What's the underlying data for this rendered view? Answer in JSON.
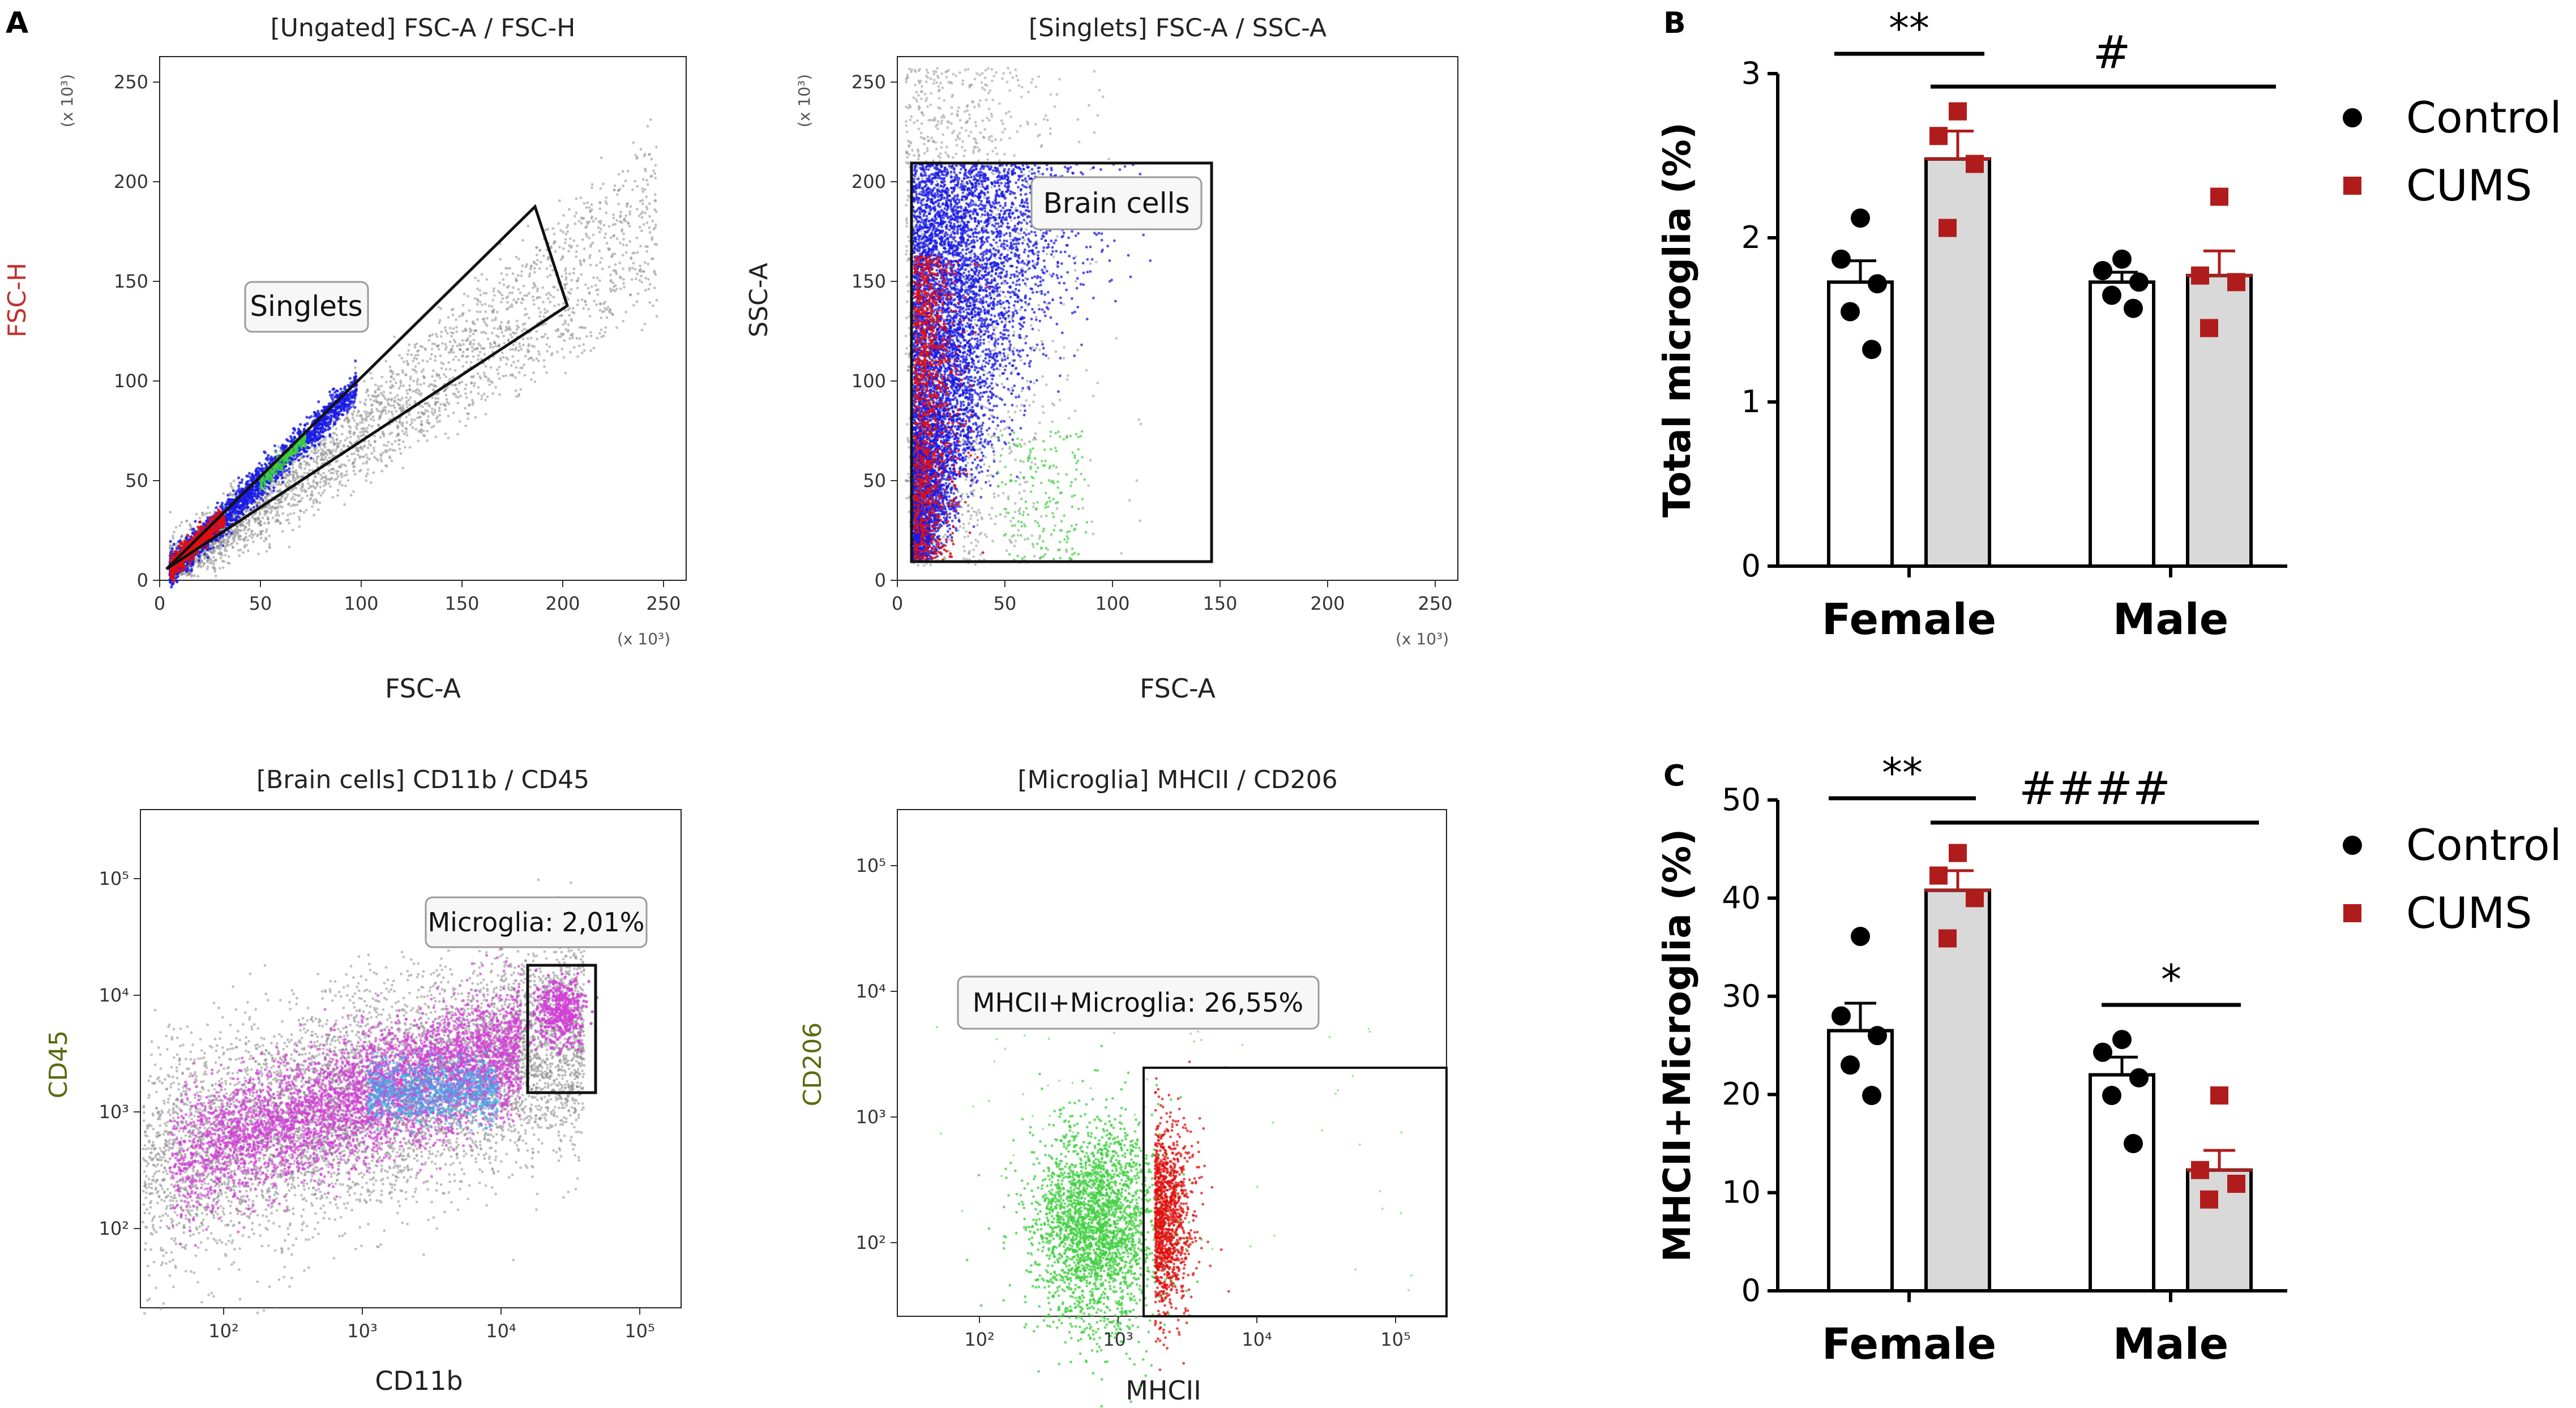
{
  "panel_labels": {
    "a": "A",
    "b": "B",
    "c": "C"
  },
  "colors": {
    "grey": "#8c8c8c",
    "blue": "#1a1ae6",
    "red": "#e01010",
    "green": "#3fcf3f",
    "magenta": "#d23fd6",
    "cyan": "#3fa9e6",
    "cums": "#b01c1c",
    "bar_fill": "#d9d9d9"
  },
  "flow_plots": [
    {
      "key": "p1",
      "title": "[Ungated] FSC-A / FSC-H",
      "xlabel": "FSC-A",
      "ylabel": "FSC-H",
      "scale": "linear",
      "xticks": [
        "0",
        "50",
        "100",
        "150",
        "200",
        "250"
      ],
      "yticks": [
        "0",
        "50",
        "100",
        "150",
        "200",
        "250"
      ],
      "x_multiplier": "(x 10³)",
      "y_multiplier": "(x 10³)",
      "gate_label": "Singlets"
    },
    {
      "key": "p2",
      "title": "[Singlets] FSC-A / SSC-A",
      "xlabel": "FSC-A",
      "ylabel": "SSC-A",
      "scale": "linear",
      "xticks": [
        "0",
        "50",
        "100",
        "150",
        "200",
        "250"
      ],
      "yticks": [
        "0",
        "50",
        "100",
        "150",
        "200",
        "250"
      ],
      "x_multiplier": "(x 10³)",
      "y_multiplier": "(x 10³)",
      "gate_label": "Brain cells"
    },
    {
      "key": "p3",
      "title": "[Brain cells] CD11b / CD45",
      "xlabel": "CD11b",
      "ylabel": "CD45",
      "scale": "log",
      "xticks": [
        "10²",
        "10³",
        "10⁴",
        "10⁵"
      ],
      "yticks": [
        "10²",
        "10³",
        "10⁴",
        "10⁵"
      ],
      "gate_label": "Microglia: 2,01%"
    },
    {
      "key": "p4",
      "title": "[Microglia] MHCII / CD206",
      "xlabel": "MHCII",
      "ylabel": "CD206",
      "scale": "log",
      "xticks": [
        "10²",
        "10³",
        "10⁴",
        "10⁵"
      ],
      "yticks": [
        "10²",
        "10³",
        "10⁴",
        "10⁵"
      ],
      "gate_label": "MHCII+Microglia: 26,55%"
    }
  ],
  "chart_data": [
    {
      "type": "bar",
      "key": "b",
      "title": "",
      "ylabel": "Total microglia (%)",
      "xlabel": "",
      "ylim": [
        0,
        3
      ],
      "yticks": [
        "0",
        "1",
        "2",
        "3"
      ],
      "categories": [
        "Female",
        "Male"
      ],
      "legend": [
        "Control",
        "CUMS"
      ],
      "legend_position": "top-right",
      "series": [
        {
          "name": "Control",
          "values": [
            1.73,
            1.73
          ],
          "sem": [
            0.13,
            0.06
          ],
          "points": [
            [
              2.12,
              1.87,
              1.72,
              1.55,
              1.32
            ],
            [
              1.87,
              1.8,
              1.73,
              1.65,
              1.57
            ]
          ]
        },
        {
          "name": "CUMS",
          "values": [
            2.48,
            1.77
          ],
          "sem": [
            0.17,
            0.15
          ],
          "points": [
            [
              2.77,
              2.62,
              2.45,
              2.06
            ],
            [
              2.25,
              1.77,
              1.73,
              1.45
            ]
          ]
        }
      ],
      "annotations": [
        {
          "text": "**",
          "between": "Female Control vs Female CUMS"
        },
        {
          "text": "#",
          "between": "Female CUMS vs Male CUMS"
        }
      ]
    },
    {
      "type": "bar",
      "key": "c",
      "title": "",
      "ylabel": "MHCII+Microglia (%)",
      "xlabel": "",
      "ylim": [
        0,
        50
      ],
      "yticks": [
        "0",
        "10",
        "20",
        "30",
        "40",
        "50"
      ],
      "categories": [
        "Female",
        "Male"
      ],
      "legend": [
        "Control",
        "CUMS"
      ],
      "legend_position": "top-right",
      "series": [
        {
          "name": "Control",
          "values": [
            26.5,
            22.0
          ],
          "sem": [
            2.8,
            1.8
          ],
          "points": [
            [
              36.1,
              28.0,
              26.0,
              23.0,
              19.9
            ],
            [
              25.6,
              24.3,
              21.7,
              19.9,
              15.0
            ]
          ]
        },
        {
          "name": "CUMS",
          "values": [
            40.8,
            12.3
          ],
          "sem": [
            2.0,
            2.0
          ],
          "points": [
            [
              44.6,
              42.3,
              40.0,
              35.9
            ],
            [
              19.9,
              12.3,
              10.9,
              9.3
            ]
          ]
        }
      ],
      "annotations": [
        {
          "text": "**",
          "between": "Female Control vs Female CUMS"
        },
        {
          "text": "####",
          "between": "Female CUMS vs Male CUMS"
        },
        {
          "text": "*",
          "between": "Male Control vs Male CUMS"
        }
      ]
    }
  ]
}
